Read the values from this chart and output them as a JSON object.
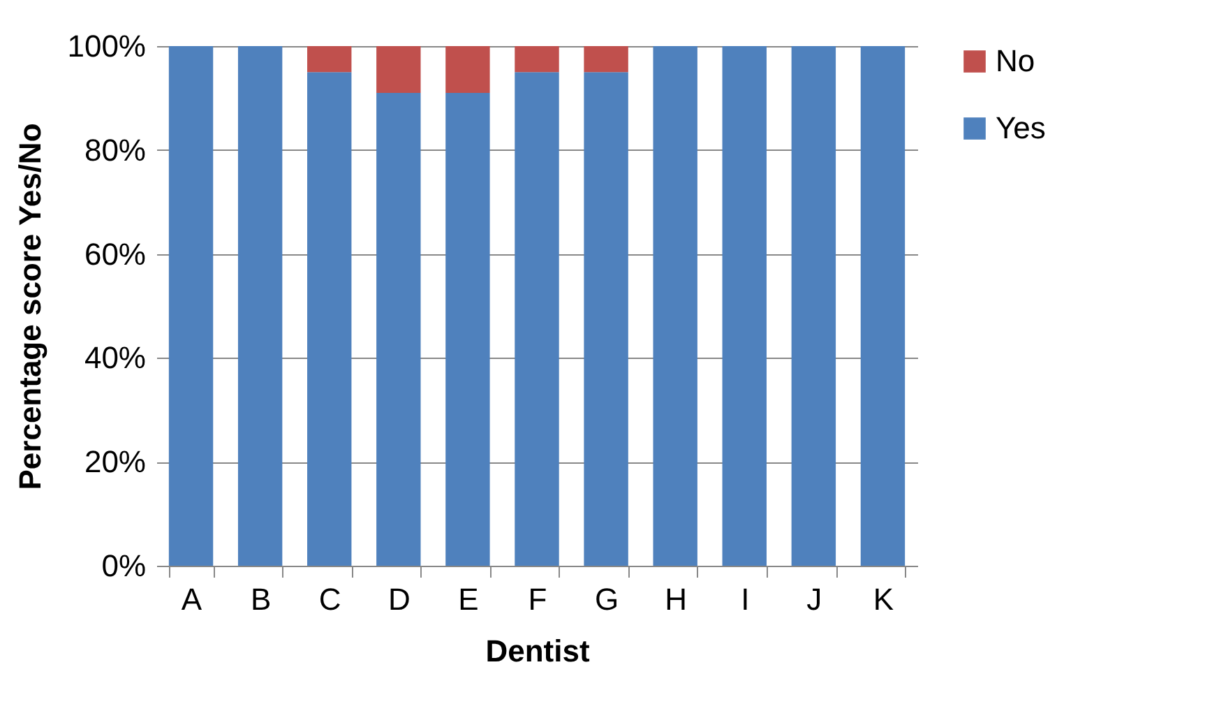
{
  "chart_data": {
    "type": "bar",
    "stacked": true,
    "xlabel": "Dentist",
    "ylabel": "Percentage score Yes/No",
    "categories": [
      "A",
      "B",
      "C",
      "D",
      "E",
      "F",
      "G",
      "H",
      "I",
      "J",
      "K"
    ],
    "series": [
      {
        "name": "Yes",
        "color": "#4f81bd",
        "values": [
          100,
          100,
          95,
          91,
          91,
          95,
          95,
          100,
          100,
          100,
          100
        ]
      },
      {
        "name": "No",
        "color": "#c0504d",
        "values": [
          0,
          0,
          5,
          9,
          9,
          5,
          5,
          0,
          0,
          0,
          0
        ]
      }
    ],
    "ylim": [
      0,
      100
    ],
    "yticks": [
      {
        "value": 0,
        "label": "0%"
      },
      {
        "value": 20,
        "label": "20%"
      },
      {
        "value": 40,
        "label": "40%"
      },
      {
        "value": 60,
        "label": "60%"
      },
      {
        "value": 80,
        "label": "80%"
      },
      {
        "value": 100,
        "label": "100%"
      }
    ],
    "grid": "y",
    "legend": "right"
  }
}
